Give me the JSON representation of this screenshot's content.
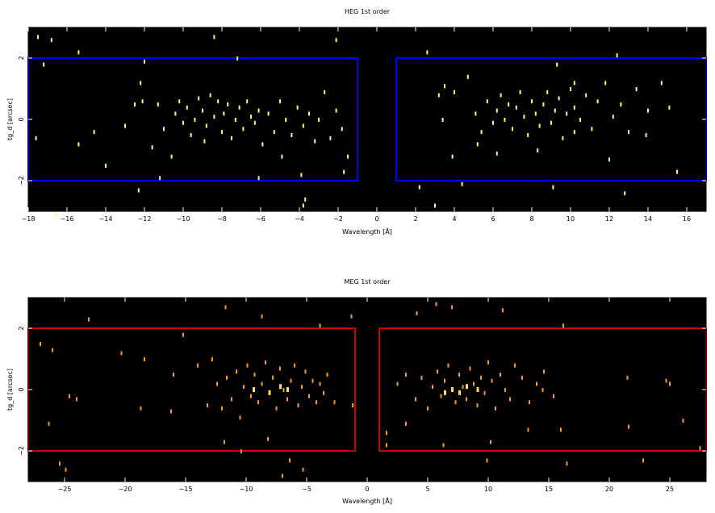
{
  "chart_data": [
    {
      "type": "scatter",
      "title": "HEG 1st order",
      "xlabel": "Wavelength [Å]",
      "ylabel": "tg_d [arcsec]",
      "xlim": [
        -18,
        17
      ],
      "ylim": [
        -3,
        3
      ],
      "xticks": [
        -18,
        -16,
        -14,
        -12,
        -10,
        -8,
        -6,
        -4,
        -2,
        0,
        2,
        4,
        6,
        8,
        10,
        12,
        14,
        16
      ],
      "yticks": [
        -2,
        0,
        2
      ],
      "background": "#000000",
      "point_color": "#ffff66",
      "region_color": "#0000ff",
      "regions": [
        {
          "x": [
            -18,
            -1
          ],
          "y": [
            -2,
            2
          ]
        },
        {
          "x": [
            1,
            17
          ],
          "y": [
            -2,
            2
          ]
        }
      ],
      "series": [
        {
          "points": [
            [
              -17.5,
              2.7
            ],
            [
              -16.8,
              2.6
            ],
            [
              -15.4,
              2.2
            ],
            [
              -17.2,
              1.8
            ],
            [
              -12.0,
              1.9
            ],
            [
              -8.4,
              2.7
            ],
            [
              -7.2,
              2.0
            ],
            [
              -2.1,
              2.6
            ],
            [
              -17.6,
              -0.6
            ],
            [
              -16.6,
              -3.1
            ],
            [
              -15.4,
              -0.8
            ],
            [
              -14.6,
              -0.4
            ],
            [
              -14.0,
              -1.5
            ],
            [
              -13.0,
              -0.2
            ],
            [
              -12.5,
              0.5
            ],
            [
              -12.2,
              1.2
            ],
            [
              -12.1,
              0.6
            ],
            [
              -11.6,
              -0.9
            ],
            [
              -11.3,
              0.5
            ],
            [
              -11.0,
              -0.3
            ],
            [
              -10.6,
              -1.2
            ],
            [
              -10.4,
              0.2
            ],
            [
              -10.2,
              0.6
            ],
            [
              -10.0,
              -0.1
            ],
            [
              -9.8,
              0.4
            ],
            [
              -9.6,
              -0.5
            ],
            [
              -9.4,
              0.0
            ],
            [
              -9.2,
              0.7
            ],
            [
              -9.0,
              0.3
            ],
            [
              -8.8,
              -0.2
            ],
            [
              -8.6,
              0.8
            ],
            [
              -8.4,
              0.1
            ],
            [
              -8.2,
              0.6
            ],
            [
              -8.0,
              -0.4
            ],
            [
              -7.9,
              0.2
            ],
            [
              -7.7,
              0.5
            ],
            [
              -7.5,
              -0.6
            ],
            [
              -7.3,
              0.0
            ],
            [
              -7.1,
              0.4
            ],
            [
              -6.9,
              -0.3
            ],
            [
              -6.7,
              0.6
            ],
            [
              -6.5,
              0.1
            ],
            [
              -6.3,
              -0.1
            ],
            [
              -6.1,
              0.3
            ],
            [
              -5.9,
              -0.8
            ],
            [
              -5.6,
              0.2
            ],
            [
              -5.3,
              -0.4
            ],
            [
              -5.0,
              0.6
            ],
            [
              -4.7,
              0.0
            ],
            [
              -4.4,
              -0.5
            ],
            [
              -4.1,
              0.4
            ],
            [
              -3.8,
              -0.2
            ],
            [
              -3.5,
              0.2
            ],
            [
              -3.2,
              -0.7
            ],
            [
              -3.0,
              0.0
            ],
            [
              -2.7,
              0.9
            ],
            [
              -2.4,
              -0.6
            ],
            [
              -2.1,
              0.3
            ],
            [
              -1.8,
              -0.3
            ],
            [
              -11.2,
              -1.9
            ],
            [
              -12.3,
              -2.3
            ],
            [
              -6.1,
              -1.9
            ],
            [
              -3.9,
              -1.8
            ],
            [
              -3.8,
              -2.8
            ],
            [
              -3.7,
              -2.6
            ],
            [
              -1.7,
              -1.7
            ],
            [
              -1.5,
              -1.2
            ],
            [
              -4.9,
              -1.2
            ],
            [
              -8.9,
              -0.7
            ],
            [
              2.6,
              2.2
            ],
            [
              3.0,
              -2.8
            ],
            [
              4.4,
              -2.1
            ],
            [
              2.2,
              -2.2
            ],
            [
              3.2,
              0.8
            ],
            [
              3.5,
              1.1
            ],
            [
              4.0,
              0.9
            ],
            [
              4.7,
              1.4
            ],
            [
              5.1,
              0.2
            ],
            [
              5.4,
              -0.4
            ],
            [
              5.7,
              0.6
            ],
            [
              6.0,
              -0.1
            ],
            [
              6.2,
              0.3
            ],
            [
              6.4,
              0.8
            ],
            [
              6.6,
              0.0
            ],
            [
              6.8,
              0.5
            ],
            [
              7.0,
              -0.3
            ],
            [
              7.2,
              0.4
            ],
            [
              7.4,
              0.9
            ],
            [
              7.6,
              0.1
            ],
            [
              7.8,
              -0.5
            ],
            [
              8.0,
              0.6
            ],
            [
              8.2,
              0.2
            ],
            [
              8.4,
              -0.2
            ],
            [
              8.6,
              0.5
            ],
            [
              8.8,
              0.9
            ],
            [
              9.0,
              -0.1
            ],
            [
              9.2,
              0.3
            ],
            [
              9.4,
              0.7
            ],
            [
              9.6,
              -0.6
            ],
            [
              9.8,
              0.2
            ],
            [
              10.0,
              1.0
            ],
            [
              10.2,
              0.4
            ],
            [
              10.5,
              0.0
            ],
            [
              10.8,
              0.8
            ],
            [
              11.1,
              -0.3
            ],
            [
              11.4,
              0.6
            ],
            [
              11.8,
              1.2
            ],
            [
              12.2,
              0.1
            ],
            [
              12.6,
              0.5
            ],
            [
              13.0,
              -0.4
            ],
            [
              13.4,
              1.0
            ],
            [
              14.0,
              0.3
            ],
            [
              14.7,
              1.2
            ],
            [
              15.1,
              0.4
            ],
            [
              15.5,
              -1.7
            ],
            [
              12.4,
              2.1
            ],
            [
              12.8,
              -2.4
            ],
            [
              9.3,
              1.8
            ],
            [
              10.2,
              1.2
            ],
            [
              3.9,
              -1.2
            ],
            [
              6.2,
              -1.1
            ],
            [
              8.3,
              -1.0
            ],
            [
              10.2,
              -0.4
            ],
            [
              12.0,
              -1.3
            ],
            [
              13.9,
              -0.5
            ],
            [
              5.2,
              -0.8
            ],
            [
              3.4,
              0.0
            ],
            [
              9.1,
              -2.2
            ]
          ]
        }
      ]
    },
    {
      "type": "scatter",
      "title": "MEG 1st order",
      "xlabel": "Wavelength [Å]",
      "ylabel": "tg_d [arcsec]",
      "xlim": [
        -28,
        28
      ],
      "ylim": [
        -3,
        3
      ],
      "xticks": [
        -25,
        -20,
        -15,
        -10,
        -5,
        0,
        5,
        10,
        15,
        20,
        25
      ],
      "yticks": [
        -2,
        0,
        2
      ],
      "background": "#000000",
      "point_color": "#ff9922",
      "highlight_color": "#ffdd66",
      "region_color": "#cc0000",
      "regions": [
        {
          "x": [
            -28,
            -1
          ],
          "y": [
            -2,
            2
          ]
        },
        {
          "x": [
            1,
            28
          ],
          "y": [
            -2,
            2
          ]
        }
      ],
      "series": [
        {
          "points": [
            [
              -27.0,
              1.5
            ],
            [
              -26.0,
              1.3
            ],
            [
              -23.0,
              2.3
            ],
            [
              -24.6,
              -0.2
            ],
            [
              -24.0,
              -0.3
            ],
            [
              -25.4,
              -2.4
            ],
            [
              -24.9,
              -2.6
            ],
            [
              -26.3,
              -1.1
            ],
            [
              -20.3,
              1.2
            ],
            [
              -18.4,
              1.0
            ],
            [
              -18.7,
              -0.6
            ],
            [
              -16.2,
              -0.7
            ],
            [
              -11.7,
              2.7
            ],
            [
              -8.7,
              2.4
            ],
            [
              -3.9,
              2.1
            ],
            [
              -1.3,
              2.4
            ],
            [
              -16.0,
              0.5
            ],
            [
              -15.2,
              1.8
            ],
            [
              -14.0,
              0.8
            ],
            [
              -13.2,
              -0.5
            ],
            [
              -12.8,
              1.0
            ],
            [
              -12.4,
              0.2
            ],
            [
              -12.0,
              -0.6
            ],
            [
              -11.6,
              0.4
            ],
            [
              -11.2,
              -0.3
            ],
            [
              -10.8,
              0.6
            ],
            [
              -10.5,
              -0.9
            ],
            [
              -10.2,
              0.1
            ],
            [
              -9.9,
              0.8
            ],
            [
              -9.6,
              -0.2
            ],
            [
              -9.3,
              0.5
            ],
            [
              -9.0,
              -0.4
            ],
            [
              -8.7,
              0.2
            ],
            [
              -8.4,
              0.9
            ],
            [
              -8.1,
              -0.1
            ],
            [
              -7.8,
              0.4
            ],
            [
              -7.5,
              -0.6
            ],
            [
              -7.2,
              0.7
            ],
            [
              -6.9,
              0.0
            ],
            [
              -6.6,
              -0.3
            ],
            [
              -6.3,
              0.3
            ],
            [
              -6.0,
              0.8
            ],
            [
              -5.7,
              -0.5
            ],
            [
              -5.4,
              0.1
            ],
            [
              -5.1,
              0.6
            ],
            [
              -4.8,
              -0.2
            ],
            [
              -4.5,
              0.3
            ],
            [
              -4.2,
              -0.4
            ],
            [
              -3.9,
              0.2
            ],
            [
              -3.6,
              -0.1
            ],
            [
              -3.3,
              0.5
            ],
            [
              -8.2,
              -1.6
            ],
            [
              -6.4,
              -2.3
            ],
            [
              -10.4,
              -2.0
            ],
            [
              -11.8,
              -1.7
            ],
            [
              -7.0,
              -2.8
            ],
            [
              -5.3,
              -2.6
            ],
            [
              -1.2,
              -0.5
            ],
            [
              -2.7,
              -0.4
            ],
            [
              1.6,
              -1.4
            ],
            [
              1.6,
              -1.8
            ],
            [
              2.5,
              0.2
            ],
            [
              3.2,
              0.5
            ],
            [
              4.0,
              -0.3
            ],
            [
              4.5,
              0.4
            ],
            [
              5.0,
              -0.6
            ],
            [
              5.4,
              0.1
            ],
            [
              5.8,
              0.6
            ],
            [
              6.1,
              -0.2
            ],
            [
              6.4,
              0.3
            ],
            [
              6.7,
              0.8
            ],
            [
              7.0,
              0.0
            ],
            [
              7.3,
              -0.4
            ],
            [
              7.6,
              0.5
            ],
            [
              7.9,
              0.1
            ],
            [
              8.2,
              -0.3
            ],
            [
              8.5,
              0.7
            ],
            [
              8.8,
              0.2
            ],
            [
              9.1,
              -0.5
            ],
            [
              9.4,
              0.4
            ],
            [
              9.7,
              -0.1
            ],
            [
              10.0,
              0.9
            ],
            [
              10.3,
              0.3
            ],
            [
              10.6,
              -0.6
            ],
            [
              11.0,
              0.5
            ],
            [
              11.4,
              0.0
            ],
            [
              11.8,
              -0.3
            ],
            [
              12.2,
              0.8
            ],
            [
              12.8,
              0.4
            ],
            [
              13.4,
              -0.4
            ],
            [
              14.0,
              0.2
            ],
            [
              14.6,
              0.6
            ],
            [
              15.4,
              -0.2
            ],
            [
              16.0,
              -1.3
            ],
            [
              16.2,
              2.1
            ],
            [
              21.5,
              0.4
            ],
            [
              21.6,
              -1.2
            ],
            [
              22.8,
              -2.3
            ],
            [
              24.7,
              0.3
            ],
            [
              26.1,
              -1.0
            ],
            [
              27.5,
              -1.9
            ],
            [
              6.3,
              -1.8
            ],
            [
              9.9,
              -2.3
            ],
            [
              14.5,
              0.0
            ],
            [
              5.7,
              2.8
            ],
            [
              11.2,
              2.6
            ],
            [
              4.1,
              2.5
            ],
            [
              7.0,
              2.7
            ],
            [
              16.5,
              -2.4
            ],
            [
              25.0,
              0.2
            ],
            [
              3.2,
              -1.1
            ],
            [
              10.2,
              -1.7
            ],
            [
              13.3,
              -1.3
            ]
          ],
          "highlights": [
            [
              -9.4,
              0.0
            ],
            [
              -8.1,
              -0.1
            ],
            [
              -7.2,
              0.1
            ],
            [
              -6.6,
              0.0
            ],
            [
              6.4,
              -0.1
            ],
            [
              7.0,
              0.0
            ],
            [
              7.6,
              -0.1
            ],
            [
              8.2,
              0.1
            ],
            [
              9.1,
              0.0
            ]
          ]
        }
      ]
    }
  ]
}
